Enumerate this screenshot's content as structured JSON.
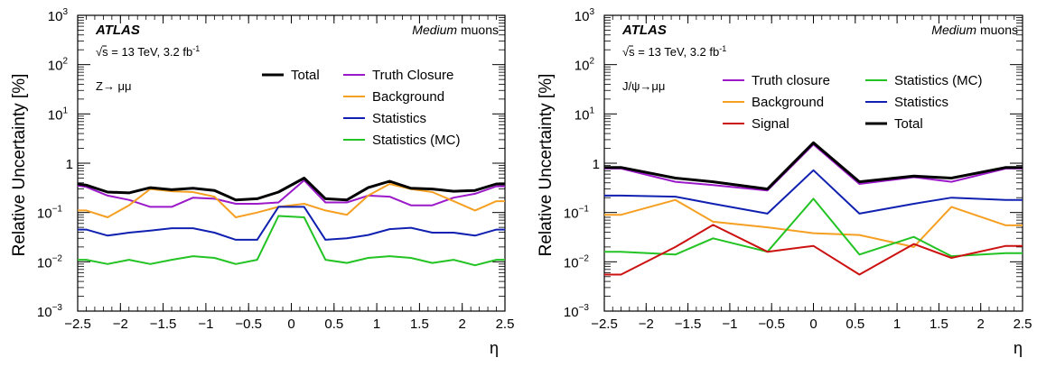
{
  "chart_data": [
    {
      "type": "line",
      "ylabel": "Relative Uncertainty [%]",
      "xlabel": "η",
      "ylog": true,
      "ylim": [
        0.001,
        1000
      ],
      "xlim": [
        -2.5,
        2.5
      ],
      "grid": false,
      "xticks": [
        "−2.5",
        "−2",
        "−1.5",
        "−1",
        "−0.5",
        "0",
        "0.5",
        "1",
        "1.5",
        "2",
        "2.5"
      ],
      "yticks": [
        "10",
        "10",
        "10",
        "1",
        "10",
        "10",
        "10"
      ],
      "experiment": "ATLAS",
      "energy": "√s = 13 TeV, 3.2 fb",
      "energy_exp": "-1",
      "working_point": "Medium",
      "working_point_suffix": "muons",
      "channel": "Z→ μμ",
      "legend": [
        {
          "name": "Total",
          "color": "#000000"
        },
        {
          "name": "Truth Closure",
          "color": "#9b19c9"
        },
        {
          "name": "Background",
          "color": "#f5a023"
        },
        {
          "name": "Statistics",
          "color": "#1020b0"
        },
        {
          "name": "Statistics (MC)",
          "color": "#22c322"
        }
      ],
      "x": [
        -2.5,
        -2.4,
        -2.15,
        -1.9,
        -1.65,
        -1.4,
        -1.15,
        -0.9,
        -0.65,
        -0.4,
        -0.15,
        0.15,
        0.4,
        0.65,
        0.9,
        1.15,
        1.4,
        1.65,
        1.9,
        2.15,
        2.4,
        2.5
      ],
      "series": [
        {
          "name": "Total",
          "color": "#000000",
          "values": [
            0.38,
            0.36,
            0.26,
            0.25,
            0.32,
            0.29,
            0.31,
            0.28,
            0.18,
            0.19,
            0.26,
            0.5,
            0.19,
            0.18,
            0.32,
            0.43,
            0.31,
            0.3,
            0.27,
            0.28,
            0.38,
            0.38
          ]
        },
        {
          "name": "Truth Closure",
          "color": "#9b19c9",
          "values": [
            0.35,
            0.33,
            0.22,
            0.18,
            0.13,
            0.13,
            0.2,
            0.19,
            0.15,
            0.15,
            0.16,
            0.45,
            0.16,
            0.16,
            0.22,
            0.21,
            0.14,
            0.14,
            0.2,
            0.24,
            0.34,
            0.34
          ]
        },
        {
          "name": "Background",
          "color": "#f5a023",
          "values": [
            0.11,
            0.11,
            0.08,
            0.14,
            0.3,
            0.27,
            0.26,
            0.21,
            0.08,
            0.1,
            0.13,
            0.15,
            0.11,
            0.09,
            0.22,
            0.38,
            0.3,
            0.26,
            0.17,
            0.11,
            0.17,
            0.17
          ]
        },
        {
          "name": "Statistics",
          "color": "#1020b0",
          "values": [
            0.045,
            0.045,
            0.034,
            0.039,
            0.043,
            0.048,
            0.048,
            0.039,
            0.028,
            0.028,
            0.13,
            0.13,
            0.028,
            0.03,
            0.035,
            0.046,
            0.049,
            0.039,
            0.039,
            0.034,
            0.045,
            0.045
          ]
        },
        {
          "name": "Statistics (MC)",
          "color": "#22c322",
          "values": [
            0.011,
            0.011,
            0.009,
            0.011,
            0.009,
            0.011,
            0.013,
            0.012,
            0.009,
            0.011,
            0.085,
            0.08,
            0.011,
            0.0095,
            0.012,
            0.013,
            0.012,
            0.0095,
            0.011,
            0.0085,
            0.011,
            0.011
          ]
        }
      ]
    },
    {
      "type": "line",
      "ylabel": "Relative Uncertainty [%]",
      "xlabel": "η",
      "ylog": true,
      "ylim": [
        0.001,
        1000
      ],
      "xlim": [
        -2.5,
        2.5
      ],
      "grid": false,
      "xticks": [
        "−2.5",
        "−2",
        "−1.5",
        "−1",
        "−0.5",
        "0",
        "0.5",
        "1",
        "1.5",
        "2",
        "2.5"
      ],
      "yticks": [
        "10",
        "10",
        "10",
        "1",
        "10",
        "10",
        "10"
      ],
      "experiment": "ATLAS",
      "energy": "√s = 13 TeV, 3.2 fb",
      "energy_exp": "-1",
      "working_point": "Medium",
      "working_point_suffix": "muons",
      "channel": "J/ψ→μμ",
      "legend": [
        {
          "name": "Truth closure",
          "color": "#9b19c9"
        },
        {
          "name": "Background",
          "color": "#f5a023"
        },
        {
          "name": "Signal",
          "color": "#cc1111"
        },
        {
          "name": "Statistics (MC)",
          "color": "#22c322"
        },
        {
          "name": "Statistics",
          "color": "#1020b0"
        },
        {
          "name": "Total",
          "color": "#000000"
        }
      ],
      "x": [
        -2.5,
        -2.3,
        -1.65,
        -1.2,
        -0.55,
        0,
        0.55,
        1.2,
        1.65,
        2.3,
        2.5
      ],
      "series": [
        {
          "name": "Total",
          "color": "#000000",
          "values": [
            0.82,
            0.82,
            0.5,
            0.42,
            0.3,
            2.6,
            0.42,
            0.55,
            0.5,
            0.82,
            0.82
          ]
        },
        {
          "name": "Truth closure",
          "color": "#9b19c9",
          "values": [
            0.78,
            0.78,
            0.42,
            0.36,
            0.28,
            2.4,
            0.38,
            0.52,
            0.42,
            0.78,
            0.78
          ]
        },
        {
          "name": "Statistics",
          "color": "#1020b0",
          "values": [
            0.22,
            0.22,
            0.21,
            0.15,
            0.095,
            0.72,
            0.095,
            0.15,
            0.2,
            0.18,
            0.18
          ]
        },
        {
          "name": "Background",
          "color": "#f5a023",
          "values": [
            0.09,
            0.09,
            0.18,
            0.065,
            0.05,
            0.038,
            0.035,
            0.02,
            0.13,
            0.055,
            0.055
          ]
        },
        {
          "name": "Statistics (MC)",
          "color": "#22c322",
          "values": [
            0.016,
            0.016,
            0.014,
            0.03,
            0.016,
            0.19,
            0.014,
            0.032,
            0.013,
            0.015,
            0.015
          ]
        },
        {
          "name": "Signal",
          "color": "#cc1111",
          "values": [
            0.0055,
            0.0055,
            0.02,
            0.056,
            0.016,
            0.021,
            0.0055,
            0.023,
            0.012,
            0.021,
            0.021
          ]
        }
      ]
    }
  ]
}
